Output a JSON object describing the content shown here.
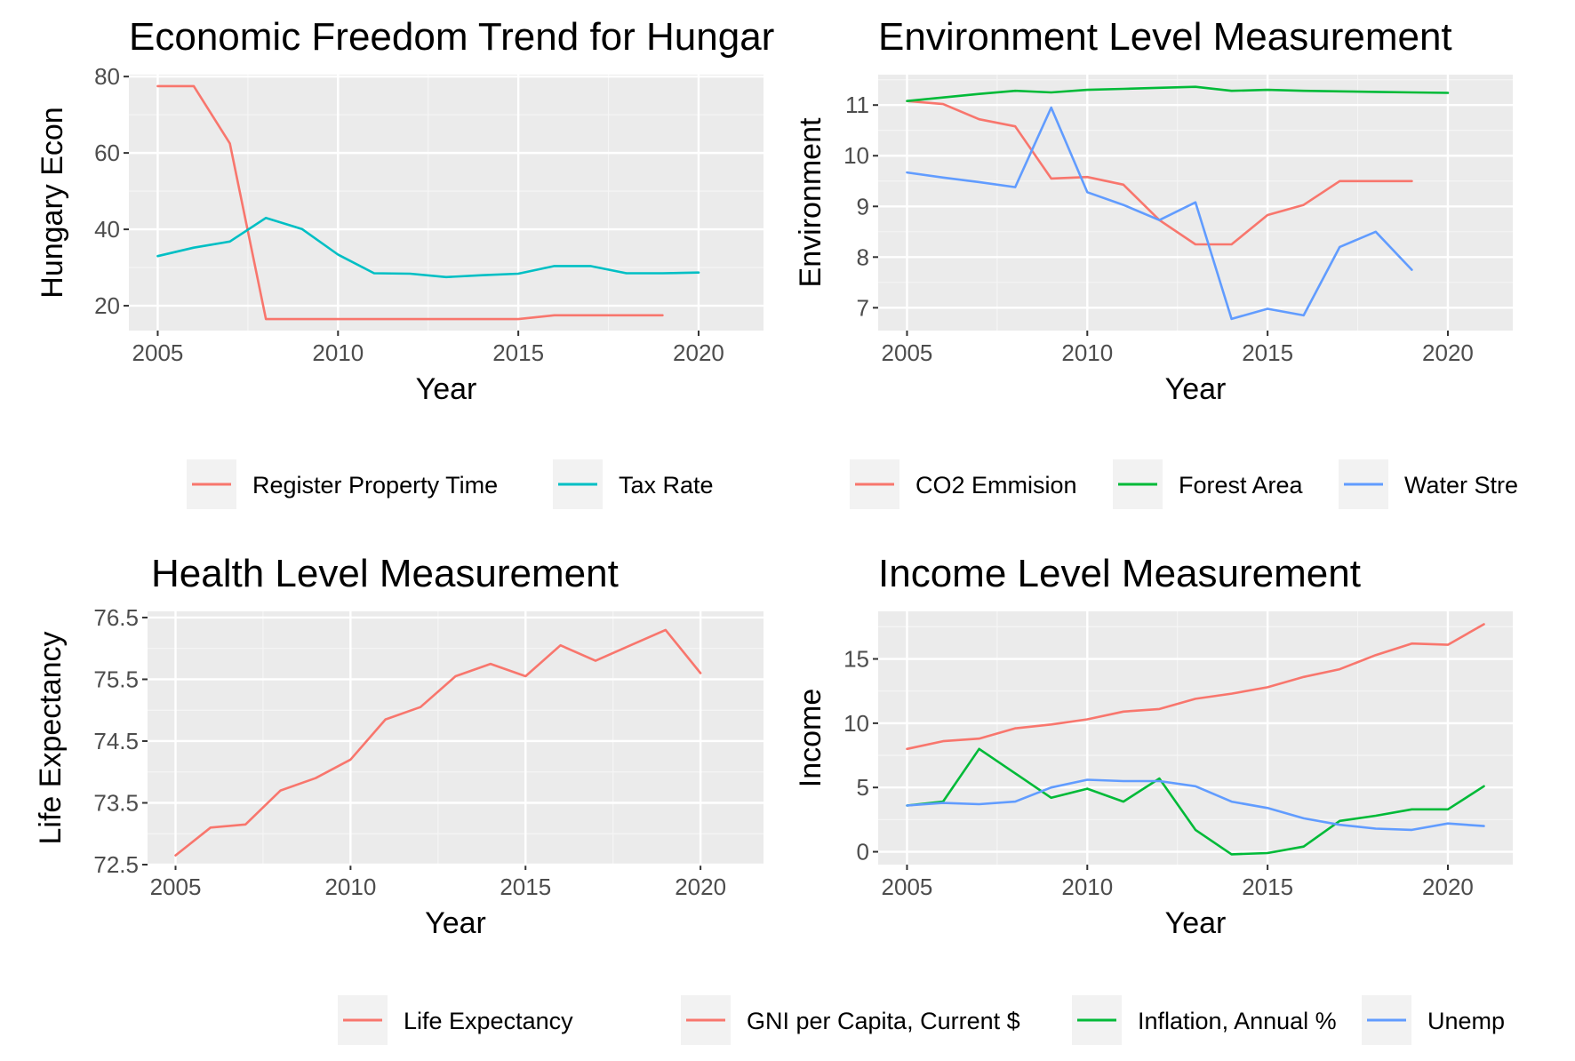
{
  "chart_data": [
    {
      "type": "line",
      "title": "Economic Freedom Trend for Hungar",
      "xlabel": "Year",
      "ylabel": "Hungary Econ",
      "xlim": [
        2004.2,
        2021.8
      ],
      "ylim": [
        13.5,
        80.5
      ],
      "x_ticks": [
        "2005",
        "2010",
        "2015",
        "2020"
      ],
      "y_ticks": [
        "20",
        "40",
        "60",
        "80"
      ],
      "grid": true,
      "legend_position": "bottom",
      "series": [
        {
          "name": "Register Property Time",
          "color": "#F8766D",
          "x": [
            2005,
            2006,
            2007,
            2008,
            2009,
            2010,
            2011,
            2012,
            2013,
            2014,
            2015,
            2016,
            2017,
            2018,
            2019
          ],
          "y": [
            77.5,
            77.5,
            62.5,
            16.5,
            16.5,
            16.5,
            16.5,
            16.5,
            16.5,
            16.5,
            16.5,
            17.5,
            17.5,
            17.5,
            17.5
          ]
        },
        {
          "name": "Tax Rate",
          "color": "#00BFC4",
          "x": [
            2005,
            2006,
            2007,
            2008,
            2009,
            2010,
            2011,
            2012,
            2013,
            2014,
            2015,
            2016,
            2017,
            2018,
            2019,
            2020
          ],
          "y": [
            33.0,
            35.2,
            36.8,
            43.0,
            40.1,
            33.4,
            28.5,
            28.4,
            27.5,
            28.0,
            28.4,
            30.4,
            30.4,
            28.5,
            28.5,
            28.7
          ]
        }
      ]
    },
    {
      "type": "line",
      "title": "Environment Level Measurement",
      "xlabel": "Year",
      "ylabel": "Environment",
      "xlim": [
        2004.2,
        2021.8
      ],
      "ylim": [
        6.55,
        11.6
      ],
      "x_ticks": [
        "2005",
        "2010",
        "2015",
        "2020"
      ],
      "y_ticks": [
        "7",
        "8",
        "9",
        "10",
        "11"
      ],
      "grid": true,
      "legend_position": "bottom",
      "series": [
        {
          "name": "CO2 Emmision",
          "color": "#F8766D",
          "x": [
            2005,
            2006,
            2007,
            2008,
            2009,
            2010,
            2011,
            2012,
            2013,
            2014,
            2015,
            2016,
            2017,
            2018,
            2019
          ],
          "y": [
            11.08,
            11.02,
            10.72,
            10.58,
            9.55,
            9.58,
            9.43,
            8.73,
            8.25,
            8.25,
            8.83,
            9.03,
            9.5,
            9.5,
            9.5
          ]
        },
        {
          "name": "Forest Area",
          "color": "#00BA38",
          "x": [
            2005,
            2006,
            2007,
            2008,
            2009,
            2010,
            2011,
            2012,
            2013,
            2014,
            2015,
            2016,
            2017,
            2018,
            2019,
            2020
          ],
          "y": [
            11.08,
            11.15,
            11.22,
            11.28,
            11.25,
            11.3,
            11.32,
            11.34,
            11.36,
            11.28,
            11.3,
            11.28,
            11.27,
            11.26,
            11.25,
            11.24
          ]
        },
        {
          "name": "Water Stre",
          "color": "#619CFF",
          "x": [
            2005,
            2006,
            2007,
            2008,
            2009,
            2010,
            2011,
            2012,
            2013,
            2014,
            2015,
            2016,
            2017,
            2018,
            2019
          ],
          "y": [
            9.67,
            9.57,
            9.48,
            9.38,
            10.95,
            9.28,
            9.03,
            8.73,
            9.08,
            6.78,
            6.98,
            6.85,
            8.2,
            8.5,
            7.75
          ]
        }
      ]
    },
    {
      "type": "line",
      "title": "Health Level Measurement",
      "xlabel": "Year",
      "ylabel": "Life Expectancy",
      "xlim": [
        2004.2,
        2021.8
      ],
      "ylim": [
        72.5,
        76.6
      ],
      "x_ticks": [
        "2005",
        "2010",
        "2015",
        "2020"
      ],
      "y_ticks": [
        "72.5",
        "73.5",
        "74.5",
        "75.5",
        "76.5"
      ],
      "grid": true,
      "legend_position": "bottom",
      "series": [
        {
          "name": "Life Expectancy",
          "color": "#F8766D",
          "x": [
            2005,
            2006,
            2007,
            2008,
            2009,
            2010,
            2011,
            2012,
            2013,
            2014,
            2015,
            2016,
            2017,
            2018,
            2019,
            2020
          ],
          "y": [
            72.65,
            73.1,
            73.15,
            73.7,
            73.9,
            74.2,
            74.85,
            75.05,
            75.55,
            75.75,
            75.55,
            76.05,
            75.8,
            76.05,
            76.3,
            75.6
          ]
        }
      ]
    },
    {
      "type": "line",
      "title": "Income Level Measurement",
      "xlabel": "Year",
      "ylabel": "Income",
      "xlim": [
        2004.2,
        2021.8
      ],
      "ylim": [
        -1.0,
        18.7
      ],
      "x_ticks": [
        "2005",
        "2010",
        "2015",
        "2020"
      ],
      "y_ticks": [
        "0",
        "5",
        "10",
        "15"
      ],
      "grid": true,
      "legend_position": "bottom",
      "series": [
        {
          "name": "GNI per Capita, Current $",
          "color": "#F8766D",
          "x": [
            2005,
            2006,
            2007,
            2008,
            2009,
            2010,
            2011,
            2012,
            2013,
            2014,
            2015,
            2016,
            2017,
            2018,
            2019,
            2020,
            2021
          ],
          "y": [
            8.0,
            8.6,
            8.8,
            9.6,
            9.9,
            10.3,
            10.9,
            11.1,
            11.9,
            12.3,
            12.8,
            13.6,
            14.2,
            15.3,
            16.2,
            16.1,
            17.7
          ]
        },
        {
          "name": "Inflation, Annual %",
          "color": "#00BA38",
          "x": [
            2005,
            2006,
            2007,
            2008,
            2009,
            2010,
            2011,
            2012,
            2013,
            2014,
            2015,
            2016,
            2017,
            2018,
            2019,
            2020,
            2021
          ],
          "y": [
            3.6,
            3.9,
            8.0,
            6.1,
            4.2,
            4.9,
            3.9,
            5.7,
            1.7,
            -0.2,
            -0.1,
            0.4,
            2.4,
            2.8,
            3.3,
            3.3,
            5.1
          ]
        },
        {
          "name": "Unemp",
          "color": "#619CFF",
          "x": [
            2005,
            2006,
            2007,
            2008,
            2009,
            2010,
            2011,
            2012,
            2013,
            2014,
            2015,
            2016,
            2017,
            2018,
            2019,
            2020,
            2021
          ],
          "y": [
            3.6,
            3.8,
            3.7,
            3.9,
            5.0,
            5.6,
            5.5,
            5.5,
            5.1,
            3.9,
            3.4,
            2.6,
            2.1,
            1.8,
            1.7,
            2.2,
            2.0
          ]
        }
      ]
    }
  ]
}
